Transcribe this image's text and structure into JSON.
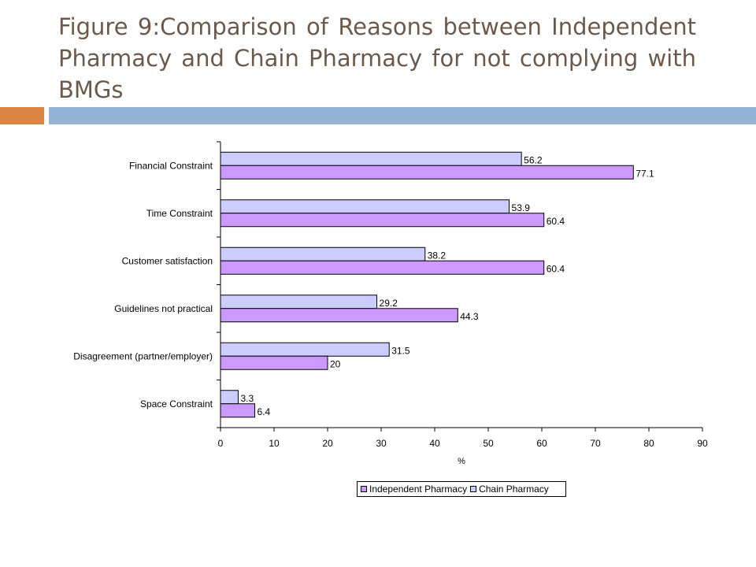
{
  "slide": {
    "title": "Figure 9:Comparison of Reasons between Independent Pharmacy and Chain Pharmacy for not complying with BMGs"
  },
  "colors": {
    "independent": "#cc99ff",
    "chain": "#ccccff",
    "accent_orange": "#db8446",
    "accent_blue": "#95b4d5"
  },
  "chart_data": {
    "type": "bar",
    "orientation": "horizontal",
    "categories": [
      "Financial Constraint",
      "Time Constraint",
      "Customer satisfaction",
      "Guidelines not practical",
      "Disagreement (partner/employer)",
      "Space Constraint"
    ],
    "series": [
      {
        "name": "Independent Pharmacy",
        "values": [
          77.1,
          60.4,
          60.4,
          44.3,
          20,
          6.4
        ]
      },
      {
        "name": "Chain Pharmacy",
        "values": [
          56.2,
          53.9,
          38.2,
          29.2,
          31.5,
          3.3
        ]
      }
    ],
    "xlabel": "%",
    "xlim": [
      0,
      90
    ],
    "xticks": [
      0,
      10,
      20,
      30,
      40,
      50,
      60,
      70,
      80,
      90
    ],
    "grid": false,
    "legend": "bottom"
  }
}
